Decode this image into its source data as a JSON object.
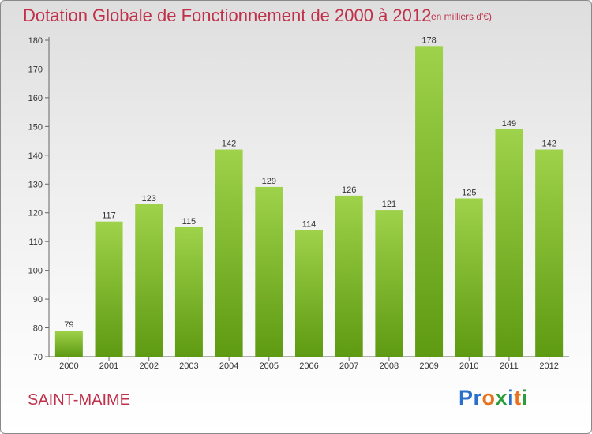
{
  "title": "Dotation Globale de Fonctionnement de 2000 à 2012",
  "unit_label": "(en milliers d'€)",
  "commune": "SAINT-MAIME",
  "logo": {
    "letters": [
      {
        "char": "P",
        "color": "#2a6fc9"
      },
      {
        "char": "r",
        "color": "#2a6fc9"
      },
      {
        "char": "o",
        "color": "#e8731c"
      },
      {
        "char": "x",
        "color": "#2a9d3c"
      },
      {
        "char": "i",
        "color": "#2a6fc9"
      },
      {
        "char": "t",
        "color": "#e8731c"
      },
      {
        "char": "i",
        "color": "#2a9d3c"
      }
    ]
  },
  "colors": {
    "title": "#c0304a",
    "bar_top": "#9ed24a",
    "bar_bottom": "#5e9a12",
    "axis": "#666666"
  },
  "chart_data": {
    "type": "bar",
    "title": "Dotation Globale de Fonctionnement de 2000 à 2012",
    "xlabel": "",
    "ylabel": "",
    "categories": [
      "2000",
      "2001",
      "2002",
      "2003",
      "2004",
      "2005",
      "2006",
      "2007",
      "2008",
      "2009",
      "2010",
      "2011",
      "2012"
    ],
    "values": [
      79,
      117,
      123,
      115,
      142,
      129,
      114,
      126,
      121,
      178,
      125,
      149,
      142
    ],
    "ylim": [
      70,
      180
    ],
    "yticks": [
      70,
      80,
      90,
      100,
      110,
      120,
      130,
      140,
      150,
      160,
      170,
      180
    ],
    "grid": false,
    "data_labels": true
  }
}
